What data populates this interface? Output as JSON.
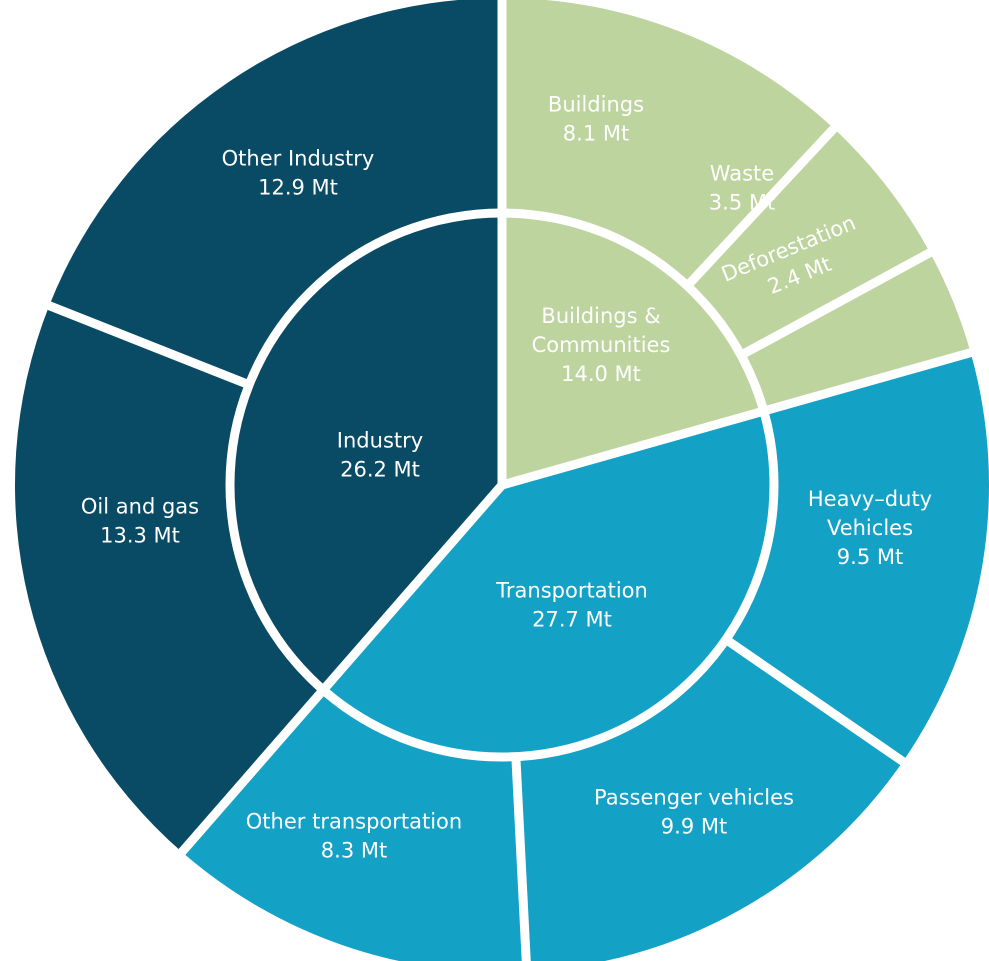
{
  "chart_data": {
    "type": "sunburst",
    "colors": {
      "Industry": "#094A65",
      "Buildings & Communities": "#BDD49F",
      "Transportation": "#14A1C6",
      "separator": "#ffffff"
    },
    "inner": [
      {
        "name": "Buildings & Communities",
        "value": 14.0,
        "label_lines": [
          "Buildings &",
          "Communities",
          "14.0 Mt"
        ]
      },
      {
        "name": "Transportation",
        "value": 27.7,
        "label_lines": [
          "Transportation",
          "27.7 Mt"
        ]
      },
      {
        "name": "Industry",
        "value": 26.2,
        "label_lines": [
          "Industry",
          "26.2 Mt"
        ]
      }
    ],
    "outer": [
      {
        "name": "Buildings",
        "parent": "Buildings & Communities",
        "value": 8.1,
        "label_lines": [
          "Buildings",
          "8.1 Mt"
        ]
      },
      {
        "name": "Waste",
        "parent": "Buildings & Communities",
        "value": 3.5,
        "label_lines": [
          "Waste",
          "3.5 Mt"
        ]
      },
      {
        "name": "Deforestation",
        "parent": "Buildings & Communities",
        "value": 2.4,
        "label_lines": [
          "Deforestation",
          "2.4 Mt"
        ],
        "rotated": true
      },
      {
        "name": "Heavy-duty Vehicles",
        "parent": "Transportation",
        "value": 9.5,
        "label_lines": [
          "Heavy–duty",
          "Vehicles",
          "9.5 Mt"
        ]
      },
      {
        "name": "Passenger vehicles",
        "parent": "Transportation",
        "value": 9.9,
        "label_lines": [
          "Passenger vehicles",
          "9.9 Mt"
        ]
      },
      {
        "name": "Other transportation",
        "parent": "Transportation",
        "value": 8.3,
        "label_lines": [
          "Other transportation",
          "8.3 Mt"
        ]
      },
      {
        "name": "Oil and gas",
        "parent": "Industry",
        "value": 13.3,
        "label_lines": [
          "Oil and gas",
          "13.3 Mt"
        ]
      },
      {
        "name": "Other Industry",
        "parent": "Industry",
        "value": 12.9,
        "label_lines": [
          "Other Industry",
          "12.9 Mt"
        ]
      }
    ]
  }
}
